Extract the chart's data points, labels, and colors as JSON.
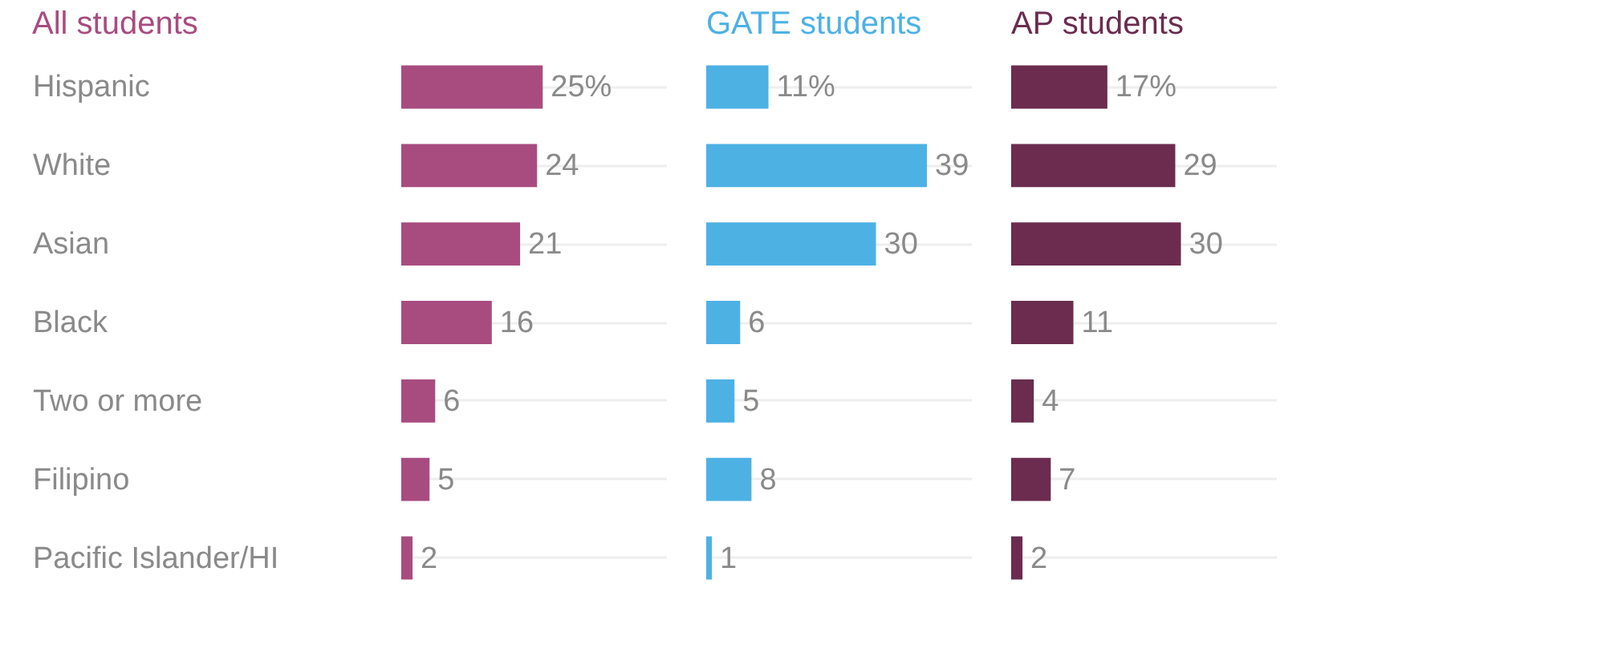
{
  "chart_data": [
    {
      "type": "bar",
      "orientation": "horizontal",
      "title": "All students",
      "categories": [
        "Hispanic",
        "White",
        "Asian",
        "Black",
        "Two or more",
        "Filipino",
        "Pacific Islander/HI"
      ],
      "color": "#a84c80",
      "values": [
        25,
        24,
        21,
        16,
        6,
        5,
        2
      ],
      "value_labels": [
        "25%",
        "24",
        "21",
        "16",
        "6",
        "5",
        "2"
      ],
      "tick_labels": "y",
      "grid": "y"
    },
    {
      "type": "bar",
      "orientation": "horizontal",
      "title": "GATE students",
      "categories": [
        null,
        null,
        null,
        null,
        null,
        null,
        null
      ],
      "color": "#4db1e4",
      "values": [
        11,
        39,
        30,
        6,
        5,
        8,
        1
      ],
      "value_labels": [
        "11%",
        "39",
        "30",
        "6",
        "5",
        "8",
        "1"
      ],
      "tick_labels": "y",
      "grid": "y"
    },
    {
      "type": "bar",
      "orientation": "horizontal",
      "title": "AP students",
      "categories": [
        null,
        null,
        null,
        null,
        null,
        null,
        null
      ],
      "color": "#6b2c4f",
      "values": [
        17,
        29,
        30,
        11,
        4,
        7,
        2
      ],
      "value_labels": [
        "17%",
        "29",
        "30",
        "11",
        "4",
        "7",
        "2"
      ],
      "tick_labels": "y",
      "grid": "y"
    }
  ]
}
